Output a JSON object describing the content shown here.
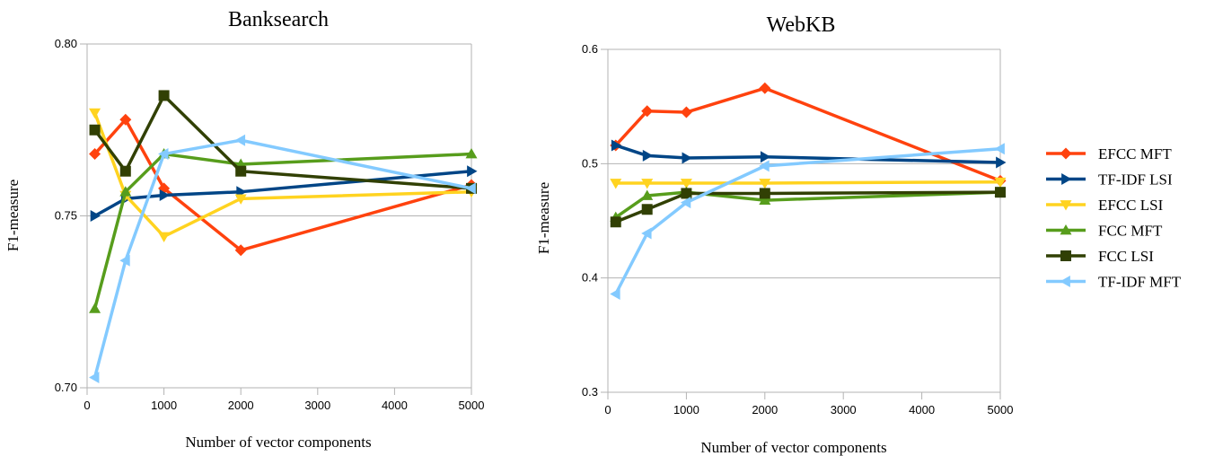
{
  "chart_data": [
    {
      "type": "line",
      "title": "Banksearch",
      "xlabel": "Number of vector components",
      "ylabel": "F1-measure",
      "x": [
        100,
        500,
        1000,
        2000,
        5000
      ],
      "xlim": [
        0,
        5000
      ],
      "ylim": [
        0.7,
        0.8
      ],
      "xticks": [
        "0",
        "1000",
        "2000",
        "3000",
        "4000",
        "5000"
      ],
      "yticks": [
        "0.70",
        "0.75",
        "0.80"
      ],
      "grid": true,
      "series": [
        {
          "name": "EFCC MFT",
          "color": "#ff420e",
          "marker": "diamond",
          "values": [
            0.768,
            0.778,
            0.758,
            0.74,
            0.759
          ]
        },
        {
          "name": "TF-IDF LSI",
          "color": "#004586",
          "marker": "triangle-right",
          "values": [
            0.75,
            0.755,
            0.756,
            0.757,
            0.763
          ]
        },
        {
          "name": "EFCC LSI",
          "color": "#ffd320",
          "marker": "triangle-down",
          "values": [
            0.78,
            0.756,
            0.744,
            0.755,
            0.757
          ]
        },
        {
          "name": "FCC MFT",
          "color": "#579d1c",
          "marker": "triangle-up",
          "values": [
            0.723,
            0.757,
            0.768,
            0.765,
            0.768
          ]
        },
        {
          "name": "FCC LSI",
          "color": "#314004",
          "marker": "square",
          "values": [
            0.775,
            0.763,
            0.785,
            0.763,
            0.758
          ]
        },
        {
          "name": "TF-IDF MFT",
          "color": "#83caff",
          "marker": "triangle-left",
          "values": [
            0.703,
            0.737,
            0.768,
            0.772,
            0.758
          ]
        }
      ]
    },
    {
      "type": "line",
      "title": "WebKB",
      "xlabel": "Number of vector components",
      "ylabel": "F1-measure",
      "x": [
        100,
        500,
        1000,
        2000,
        5000
      ],
      "xlim": [
        0,
        5000
      ],
      "ylim": [
        0.3,
        0.6
      ],
      "xticks": [
        "0",
        "1000",
        "2000",
        "3000",
        "4000",
        "5000"
      ],
      "yticks": [
        "0.3",
        "0.4",
        "0.5",
        "0.6"
      ],
      "grid": true,
      "series": [
        {
          "name": "EFCC MFT",
          "color": "#ff420e",
          "marker": "diamond",
          "values": [
            0.516,
            0.546,
            0.545,
            0.566,
            0.485
          ]
        },
        {
          "name": "TF-IDF LSI",
          "color": "#004586",
          "marker": "triangle-right",
          "values": [
            0.516,
            0.507,
            0.505,
            0.506,
            0.501
          ]
        },
        {
          "name": "EFCC LSI",
          "color": "#ffd320",
          "marker": "triangle-down",
          "values": [
            0.483,
            0.483,
            0.483,
            0.483,
            0.484
          ]
        },
        {
          "name": "FCC MFT",
          "color": "#579d1c",
          "marker": "triangle-up",
          "values": [
            0.453,
            0.472,
            0.475,
            0.468,
            0.475
          ]
        },
        {
          "name": "FCC LSI",
          "color": "#314004",
          "marker": "square",
          "values": [
            0.449,
            0.46,
            0.474,
            0.474,
            0.475
          ]
        },
        {
          "name": "TF-IDF MFT",
          "color": "#83caff",
          "marker": "triangle-left",
          "values": [
            0.386,
            0.439,
            0.466,
            0.498,
            0.513
          ]
        }
      ]
    }
  ],
  "legend": {
    "placement": "right",
    "items": [
      "EFCC MFT",
      "TF-IDF LSI",
      "EFCC LSI",
      "FCC MFT",
      "FCC LSI",
      "TF-IDF MFT"
    ]
  }
}
